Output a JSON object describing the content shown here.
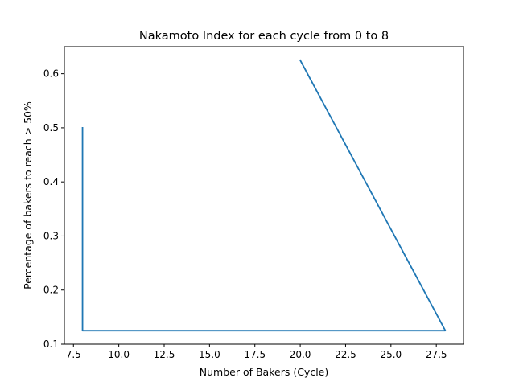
{
  "chart_data": {
    "type": "line",
    "title": "Nakamoto Index for each cycle from 0 to 8",
    "xlabel": "Number of Bakers (Cycle)",
    "ylabel": "Percentage of bakers to reach > 50%",
    "xlim": [
      7.0,
      29.0
    ],
    "ylim": [
      0.1,
      0.65
    ],
    "xticks": [
      7.5,
      10.0,
      12.5,
      15.0,
      17.5,
      20.0,
      22.5,
      25.0,
      27.5
    ],
    "xtick_labels": [
      "7.5",
      "10.0",
      "12.5",
      "15.0",
      "17.5",
      "20.0",
      "22.5",
      "25.0",
      "27.5"
    ],
    "yticks": [
      0.1,
      0.2,
      0.3,
      0.4,
      0.5,
      0.6
    ],
    "ytick_labels": [
      "0.1",
      "0.2",
      "0.3",
      "0.4",
      "0.5",
      "0.6"
    ],
    "grid": false,
    "series": [
      {
        "color": "#1f77b4",
        "x": [
          8,
          8,
          8,
          8,
          8,
          28,
          20
        ],
        "y": [
          0.5,
          0.125,
          0.25,
          0.125,
          0.125,
          0.125,
          0.625
        ]
      }
    ]
  }
}
